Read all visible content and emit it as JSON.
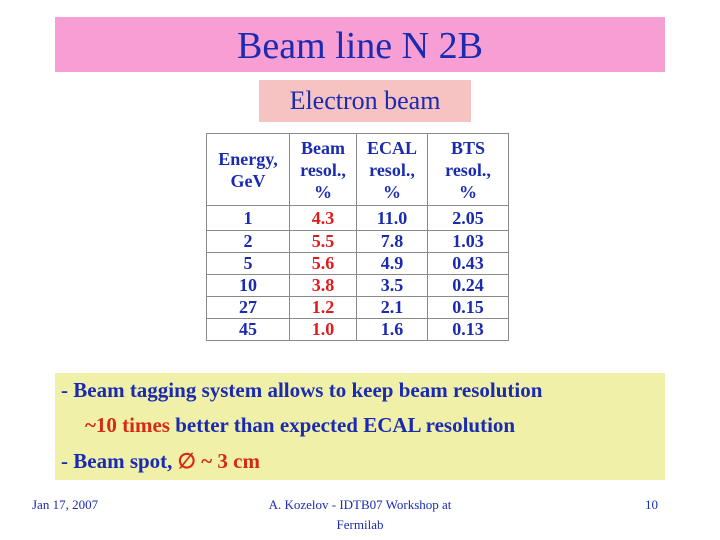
{
  "slide": {
    "title": "Beam line N 2B",
    "subtitle": "Electron beam"
  },
  "table": {
    "headers": [
      [
        "Energy,",
        "GeV",
        ""
      ],
      [
        "Beam",
        "resol.,",
        "%"
      ],
      [
        "ECAL",
        "resol.,",
        "%"
      ],
      [
        "BTS",
        "resol.,",
        "%"
      ]
    ],
    "rows": [
      [
        "1",
        "4.3",
        "11.0",
        "2.05"
      ],
      [
        "2",
        "5.5",
        "7.8",
        "1.03"
      ],
      [
        "5",
        "5.6",
        "4.9",
        "0.43"
      ],
      [
        "10",
        "3.8",
        "3.5",
        "0.24"
      ],
      [
        "27",
        "1.2",
        "2.1",
        "0.15"
      ],
      [
        "45",
        "1.0",
        "1.6",
        "0.13"
      ]
    ]
  },
  "notes": {
    "line1": "- Beam tagging system allows to keep beam  resolution",
    "line2_red": "~10 times",
    "line2_rest": " better than expected   ECAL resolution",
    "line3_start": "- Beam spot, ",
    "line3_symbol": "∅",
    "line3_red": " ~ 3 cm"
  },
  "footer": {
    "date": "Jan 17, 2007",
    "center_line1": "A. Kozelov - IDTB07 Workshop at",
    "center_line2": "Fermilab",
    "page": "10"
  },
  "colors": {
    "title_bg": "#f79ed4",
    "subtitle_bg": "#f7c2c2",
    "notes_bg": "#f0f0a8",
    "text_blue": "#1a2bb0",
    "text_red": "#e01b1b"
  }
}
